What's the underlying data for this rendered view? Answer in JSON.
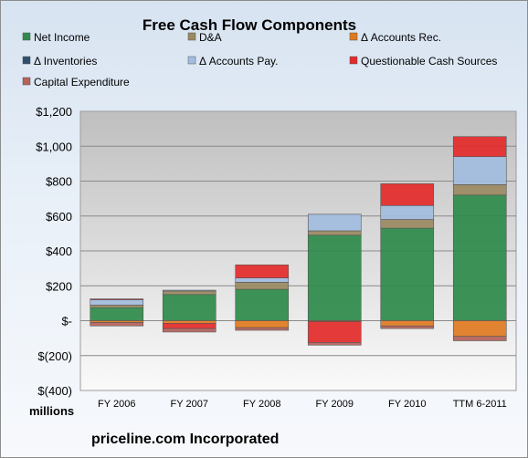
{
  "chart_data": {
    "type": "bar",
    "stacked": true,
    "title": "Free Cash Flow Components",
    "unit_label": "millions",
    "footer": "priceline.com Incorporated",
    "categories": [
      "FY 2006",
      "FY 2007",
      "FY 2008",
      "FY 2009",
      "FY 2010",
      "TTM 6-2011"
    ],
    "ylim": [
      -400,
      1200
    ],
    "yticks": [
      1200,
      1000,
      800,
      600,
      400,
      200,
      0,
      -200,
      -400
    ],
    "ytick_labels": [
      "$1,200",
      "$1,000",
      "$800",
      "$600",
      "$400",
      "$200",
      "$-",
      "$(200)",
      "$(400)"
    ],
    "legend_position": "top",
    "series": [
      {
        "name": "Net Income",
        "color": "#2e8b4a",
        "values": [
          75,
          150,
          180,
          490,
          530,
          720
        ]
      },
      {
        "name": "D&A",
        "color": "#9a8a62",
        "values": [
          15,
          20,
          40,
          25,
          50,
          60
        ]
      },
      {
        "name": "Δ Accounts Rec.",
        "color": "#e07a1f",
        "values": [
          -10,
          -15,
          -40,
          -5,
          -30,
          -90
        ]
      },
      {
        "name": "Δ Inventories",
        "color": "#2f4f6f",
        "values": [
          0,
          0,
          0,
          0,
          0,
          0
        ]
      },
      {
        "name": "Δ Accounts Pay.",
        "color": "#a3bde0",
        "values": [
          30,
          5,
          25,
          95,
          80,
          160
        ]
      },
      {
        "name": "Questionable Cash Sources",
        "color": "#e42a2a",
        "values": [
          5,
          -30,
          75,
          -120,
          125,
          115
        ]
      },
      {
        "name": "Capital Expenditure",
        "color": "#b5615a",
        "values": [
          -20,
          -20,
          -15,
          -15,
          -15,
          -25
        ]
      }
    ]
  }
}
